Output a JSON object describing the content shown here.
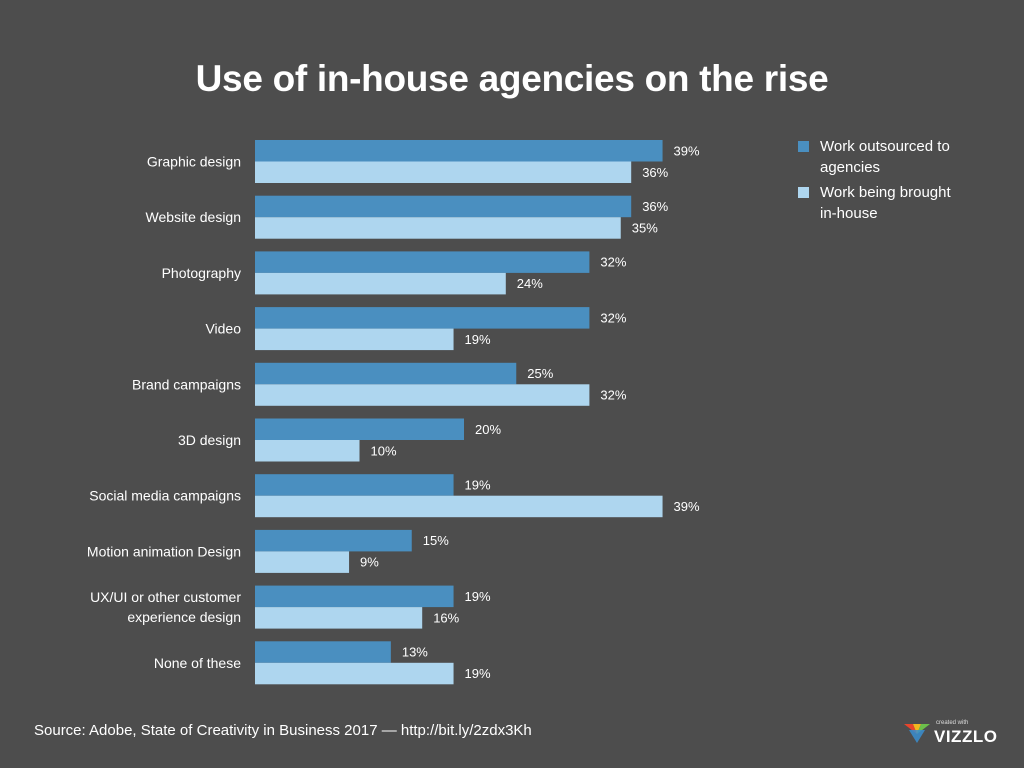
{
  "title": "Use of in-house agencies on the rise",
  "legend": {
    "series1": "Work outsourced to agencies",
    "series2": "Work being brought in-house"
  },
  "source": "Source: Adobe, State of Creativity in Business 2017 — http://bit.ly/2zdx3Kh",
  "brand": {
    "small": "created with",
    "name": "VIZZLO"
  },
  "colors": {
    "background": "#4d4d4d",
    "series1": "#4a8fc0",
    "series2": "#aed6ef",
    "text": "#ffffff"
  },
  "chart_data": {
    "type": "bar",
    "orientation": "horizontal",
    "title": "Use of in-house agencies on the rise",
    "categories": [
      "Graphic design",
      "Website design",
      "Photography",
      "Video",
      "Brand campaigns",
      "3D design",
      "Social media campaigns",
      "Motion animation Design",
      "UX/UI or other customer experience design",
      "None of these"
    ],
    "category_lines": [
      [
        "Graphic design"
      ],
      [
        "Website design"
      ],
      [
        "Photography"
      ],
      [
        "Video"
      ],
      [
        "Brand campaigns"
      ],
      [
        "3D design"
      ],
      [
        "Social media campaigns"
      ],
      [
        "Motion animation Design"
      ],
      [
        "UX/UI or other customer",
        "experience design"
      ],
      [
        "None of these"
      ]
    ],
    "series": [
      {
        "name": "Work outsourced to agencies",
        "values": [
          39,
          36,
          32,
          32,
          25,
          20,
          19,
          15,
          19,
          13
        ]
      },
      {
        "name": "Work being brought in-house",
        "values": [
          36,
          35,
          24,
          19,
          32,
          10,
          39,
          9,
          16,
          19
        ]
      }
    ],
    "value_suffix": "%",
    "xlim": [
      0,
      39
    ],
    "legend": "top-right",
    "grid": false
  }
}
